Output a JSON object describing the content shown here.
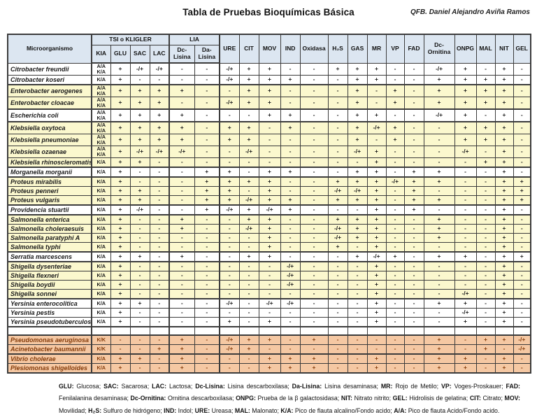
{
  "title": "Tabla de Pruebas Bioquímicas Básica",
  "author": "QFB. Daniel Alejandro Aviña Ramos",
  "colors": {
    "header_bg": "#dce6f1",
    "yellow_row_bg": "#fbf8ce",
    "salmon_row_bg": "#f5c8a3",
    "salmon_row_text": "#843c0c",
    "grid_border": "#3c3c3c"
  },
  "table": {
    "header": {
      "microorganismo": "Microorganismo",
      "tsi_group": "TSI o KLIGLER",
      "lia_group": "LIA",
      "tsi_cols": [
        "KIA",
        "GLU",
        "SAC",
        "LAC"
      ],
      "lia_cols": [
        "Dc-Lisina",
        "Da-Lisina"
      ],
      "single_cols": [
        "URE",
        "CIT",
        "MOV",
        "IND",
        "Oxidasa",
        "H₂S",
        "GAS",
        "MR",
        "VP",
        "FAD",
        "Dc-Ornitina",
        "ONPG",
        "MAL",
        "NIT",
        "GEL"
      ]
    },
    "rows": [
      {
        "name": "Citrobacter freundii",
        "bg": "white",
        "kia": [
          "A/A",
          "K/A"
        ],
        "values": [
          "+",
          "-/+",
          "-/+",
          "-",
          "-",
          "-/+",
          "+",
          "+",
          "-",
          "-",
          "+",
          "+",
          "+",
          "-",
          "-",
          "-/+",
          "+",
          "-",
          "+",
          "-"
        ]
      },
      {
        "name": "Citrobacter koseri",
        "bg": "white",
        "kia": [
          "K/A"
        ],
        "values": [
          "+",
          "-",
          "-",
          "-",
          "-",
          "-/+",
          "+",
          "+",
          "+",
          "-",
          "-",
          "+",
          "+",
          "-",
          "-",
          "+",
          "+",
          "+",
          "+",
          "-"
        ]
      },
      {
        "name": "Enterobacter aerogenes",
        "bg": "yellow",
        "sep": true,
        "kia": [
          "A/A",
          "K/A"
        ],
        "values": [
          "+",
          "+",
          "+",
          "+",
          "-",
          "-",
          "+",
          "+",
          "-",
          "-",
          "-",
          "+",
          "-",
          "+",
          "-",
          "+",
          "+",
          "+",
          "+",
          "-"
        ]
      },
      {
        "name": "Enterobacter cloacae",
        "bg": "yellow",
        "kia": [
          "A/A",
          "K/A"
        ],
        "values": [
          "+",
          "+",
          "+",
          "-",
          "-",
          "-/+",
          "+",
          "+",
          "-",
          "-",
          "-",
          "+",
          "-",
          "+",
          "-",
          "+",
          "+",
          "+",
          "+",
          "-"
        ]
      },
      {
        "name": "Escherichia coli",
        "bg": "white",
        "sep": true,
        "kia": [
          "A/A",
          "K/A"
        ],
        "values": [
          "+",
          "+",
          "+",
          "+",
          "-",
          "-",
          "-",
          "+",
          "+",
          "-",
          "-",
          "+",
          "+",
          "-",
          "-",
          "-/+",
          "+",
          "-",
          "+",
          "-"
        ]
      },
      {
        "name": "Klebsiella oxytoca",
        "bg": "yellow",
        "sep": true,
        "kia": [
          "A/A",
          "K/A"
        ],
        "values": [
          "+",
          "+",
          "+",
          "+",
          "-",
          "+",
          "+",
          "-",
          "+",
          "-",
          "-",
          "+",
          "-/+",
          "+",
          "-",
          "-",
          "+",
          "+",
          "+",
          "-"
        ]
      },
      {
        "name": "Klebsiella pneumoniae",
        "bg": "yellow",
        "kia": [
          "A/A",
          "K/A"
        ],
        "values": [
          "+",
          "+",
          "+",
          "+",
          "-",
          "+",
          "+",
          "-",
          "-",
          "-",
          "-",
          "+",
          "-",
          "+",
          "-",
          "-",
          "+",
          "+",
          "+",
          "-"
        ]
      },
      {
        "name": "Klebsiella ozaenae",
        "bg": "yellow",
        "kia": [
          "A/A",
          "K/A"
        ],
        "values": [
          "+",
          "-/+",
          "-/+",
          "-/+",
          "-",
          "-",
          "-/+",
          "-",
          "-",
          "-",
          "-",
          "-/+",
          "+",
          "-",
          "-",
          "-",
          "-/+",
          "-",
          "+",
          "-"
        ]
      },
      {
        "name": "Klebsiella rhinoscleromatis",
        "bg": "yellow",
        "kia": [
          "K/A"
        ],
        "values": [
          "+",
          "+",
          "-",
          "-",
          "-",
          "-",
          "-",
          "-",
          "-",
          "-",
          "-",
          "-",
          "+",
          "-",
          "-",
          "-",
          "-",
          "+",
          "+",
          "-"
        ]
      },
      {
        "name": "Morganella morganii",
        "bg": "white",
        "sep": true,
        "kia": [
          "K/A"
        ],
        "values": [
          "+",
          "-",
          "-",
          "-",
          "+",
          "+",
          "-",
          "+",
          "+",
          "-",
          "-",
          "+",
          "+",
          "-",
          "+",
          "+",
          "-",
          "-",
          "+",
          "-"
        ]
      },
      {
        "name": "Proteus mirabilis",
        "bg": "yellow",
        "sep": true,
        "kia": [
          "K/A"
        ],
        "values": [
          "+",
          "-",
          "-",
          "-",
          "+",
          "+",
          "+",
          "+",
          "-",
          "-",
          "+",
          "+",
          "+",
          "-/+",
          "+",
          "+",
          "-",
          "-",
          "+",
          "+"
        ]
      },
      {
        "name": "Proteus penneri",
        "bg": "yellow",
        "kia": [
          "K/A"
        ],
        "values": [
          "+",
          "+",
          "-",
          "-",
          "+",
          "+",
          "-",
          "+",
          "-",
          "-",
          "-/+",
          "-/+",
          "+",
          "-",
          "+",
          "-",
          "-",
          "-",
          "+",
          "+"
        ]
      },
      {
        "name": "Proteus vulgaris",
        "bg": "yellow",
        "kia": [
          "K/A"
        ],
        "values": [
          "+",
          "+",
          "-",
          "-",
          "+",
          "+",
          "-/+",
          "+",
          "+",
          "-",
          "+",
          "+",
          "+",
          "-",
          "+",
          "+",
          "-",
          "-",
          "+",
          "+"
        ]
      },
      {
        "name": "Providencia stuartii",
        "bg": "white",
        "sep": true,
        "kia": [
          "K/A"
        ],
        "values": [
          "+",
          "-/+",
          "-",
          "-",
          "+",
          "-/+",
          "+",
          "-/+",
          "+",
          "-",
          "-",
          "-",
          "+",
          "-",
          "+",
          "-",
          "-",
          "-",
          "+",
          "-"
        ]
      },
      {
        "name": "Salmonella enterica",
        "bg": "yellow",
        "sep": true,
        "kia": [
          "K/A"
        ],
        "values": [
          "+",
          "-",
          "-",
          "+",
          "-",
          "-",
          "+",
          "+",
          "-",
          "-",
          "+",
          "+",
          "+",
          "-",
          "-",
          "+",
          "-",
          "-",
          "+",
          "-"
        ]
      },
      {
        "name": "Salmonella choleraesuis",
        "bg": "yellow",
        "kia": [
          "K/A"
        ],
        "values": [
          "+",
          "-",
          "-",
          "+",
          "-",
          "-",
          "-/+",
          "+",
          "-",
          "-",
          "-/+",
          "+",
          "+",
          "-",
          "-",
          "+",
          "-",
          "-",
          "+",
          "-"
        ]
      },
      {
        "name": "Salmonella paratyphi A",
        "bg": "yellow",
        "kia": [
          "K/A"
        ],
        "values": [
          "+",
          "-",
          "-",
          "-",
          "-",
          "-",
          "-",
          "+",
          "-",
          "-",
          "-/+",
          "+",
          "+",
          "-",
          "-",
          "+",
          "-",
          "-",
          "+",
          "-"
        ]
      },
      {
        "name": "Salmonella typhi",
        "bg": "yellow",
        "kia": [
          "K/A"
        ],
        "values": [
          "+",
          "-",
          "-",
          "-",
          "-",
          "-",
          "-",
          "+",
          "-",
          "-",
          "+",
          "-",
          "+",
          "-",
          "-",
          "-",
          "-",
          "-",
          "+",
          "-"
        ]
      },
      {
        "name": "Serratia marcescens",
        "bg": "white",
        "sep": true,
        "kia": [
          "K/A"
        ],
        "values": [
          "+",
          "+",
          "-",
          "+",
          "-",
          "-",
          "+",
          "+",
          "-",
          "-",
          "-",
          "+",
          "-/+",
          "+",
          "-",
          "+",
          "+",
          "-",
          "+",
          "+"
        ]
      },
      {
        "name": "Shigella dysenteriae",
        "bg": "yellow",
        "sep": true,
        "kia": [
          "K/A"
        ],
        "values": [
          "+",
          "-",
          "-",
          "-",
          "-",
          "-",
          "-",
          "-",
          "-/+",
          "-",
          "-",
          "-",
          "+",
          "-",
          "-",
          "-",
          "-",
          "-",
          "+",
          "-"
        ]
      },
      {
        "name": "Shigella flexneri",
        "bg": "yellow",
        "kia": [
          "K/A"
        ],
        "values": [
          "+",
          "-",
          "-",
          "-",
          "-",
          "-",
          "-",
          "-",
          "-/+",
          "-",
          "-",
          "-",
          "+",
          "-",
          "-",
          "-",
          "-",
          "-",
          "+",
          "-"
        ]
      },
      {
        "name": "Shigella boydii",
        "bg": "yellow",
        "kia": [
          "K/A"
        ],
        "values": [
          "+",
          "-",
          "-",
          "-",
          "-",
          "-",
          "-",
          "-",
          "-/+",
          "-",
          "-",
          "-",
          "+",
          "-",
          "-",
          "-",
          "-",
          "-",
          "+",
          "-"
        ]
      },
      {
        "name": "Shigella sonnei",
        "bg": "yellow",
        "kia": [
          "K/A"
        ],
        "values": [
          "+",
          "-",
          "-",
          "-",
          "-",
          "-",
          "-",
          "-",
          "-",
          "-",
          "-",
          "-",
          "+",
          "-",
          "-",
          "-",
          "-/+",
          "-",
          "+",
          "-"
        ]
      },
      {
        "name": "Yersinia enterocolitica",
        "bg": "white",
        "sep": true,
        "kia": [
          "K/A"
        ],
        "values": [
          "+",
          "+",
          "-",
          "-",
          "-",
          "-/+",
          "-",
          "-/+",
          "-/+",
          "-",
          "-",
          "-",
          "+",
          "-",
          "-",
          "+",
          "+",
          "-",
          "+",
          "-"
        ]
      },
      {
        "name": "Yersinia pestis",
        "bg": "white",
        "kia": [
          "K/A"
        ],
        "values": [
          "+",
          "-",
          "-",
          "-",
          "-",
          "-",
          "-",
          "-",
          "-",
          "-",
          "-",
          "-",
          "+",
          "-",
          "-",
          "-",
          "-/+",
          "-",
          "+",
          "-"
        ]
      },
      {
        "name": "Yersinia pseudotuberculosis",
        "bg": "white",
        "kia": [
          "K/A"
        ],
        "values": [
          "+",
          "-",
          "-",
          "-",
          "-",
          "+",
          "-",
          "+",
          "-",
          "-",
          "-",
          "-",
          "+",
          "-",
          "-",
          "-",
          "+",
          "-",
          "+",
          "-"
        ]
      },
      {
        "spacer": true,
        "bg": "white",
        "sep": true
      },
      {
        "name": "Pseudomonas aeruginosa",
        "bg": "salmon",
        "sep": true,
        "kia": [
          "K/K"
        ],
        "values": [
          "-",
          "-",
          "-",
          "+",
          "-",
          "-/+",
          "+",
          "+",
          "-",
          "+",
          "-",
          "-",
          "-",
          "-",
          "-",
          "+",
          "-",
          "+",
          "+",
          "-/+"
        ]
      },
      {
        "name": "Acinetobacter baumannii",
        "bg": "salmon",
        "kia": [
          "K/K"
        ],
        "values": [
          "-",
          "-",
          "+",
          "+",
          "-",
          "-/+",
          "+",
          "-",
          "-",
          "-",
          "-",
          "-",
          "-",
          "-",
          "-",
          "+",
          "-",
          "+",
          "-",
          "-/+"
        ]
      },
      {
        "name": "Vibrio cholerae",
        "bg": "salmon",
        "sep": true,
        "kia": [
          "K/A"
        ],
        "values": [
          "+",
          "+",
          "-",
          "+",
          "-",
          "-",
          "-",
          "+",
          "+",
          "+",
          "-",
          "-",
          "+",
          "-",
          "-",
          "+",
          "+",
          "-",
          "+",
          "-"
        ]
      },
      {
        "name": "Plesiomonas shigelloides",
        "bg": "salmon",
        "kia": [
          "K/A"
        ],
        "values": [
          "+",
          "-",
          "-",
          "+",
          "-",
          "-",
          "-",
          "+",
          "+",
          "+",
          "-",
          "-",
          "+",
          "-",
          "-",
          "+",
          "+",
          "-",
          "+",
          "-"
        ]
      }
    ]
  },
  "legend": [
    {
      "t": "GLU",
      "d": "Glucosa"
    },
    {
      "t": "SAC",
      "d": "Sacarosa"
    },
    {
      "t": "LAC",
      "d": "Lactosa"
    },
    {
      "t": "Dc-Lisina",
      "d": "Lisina descarboxilasa"
    },
    {
      "t": "Da-Lisina",
      "d": "Lisina desaminasa"
    },
    {
      "t": "MR",
      "d": "Rojo de Metilo"
    },
    {
      "t": "VP",
      "d": "Voges-Proskauer"
    },
    {
      "t": "FAD",
      "d": "Fenilalanina desaminasa"
    },
    {
      "t": "Dc-Ornitina",
      "d": "Ornitina descarboxilasa"
    },
    {
      "t": "ONPG",
      "d": "Prueba de la β galactosidasa"
    },
    {
      "t": "NIT",
      "d": "Nitrato nitrito"
    },
    {
      "t": "GEL",
      "d": "Hidrolisis de gelatina"
    },
    {
      "t": "CIT",
      "d": "Citrato"
    },
    {
      "t": "MOV",
      "d": "Movilidad"
    },
    {
      "t": "H₂S",
      "d": "Sulfuro de hidrógeno"
    },
    {
      "t": "IND",
      "d": "Indol"
    },
    {
      "t": "URE",
      "d": "Ureasa"
    },
    {
      "t": "MAL",
      "d": "Malonato"
    },
    {
      "t": "K/A",
      "d": "Pico de flauta alcalino/Fondo acido"
    },
    {
      "t": "A/A",
      "d": "Pico de flauta Acido/Fondo acido"
    }
  ]
}
